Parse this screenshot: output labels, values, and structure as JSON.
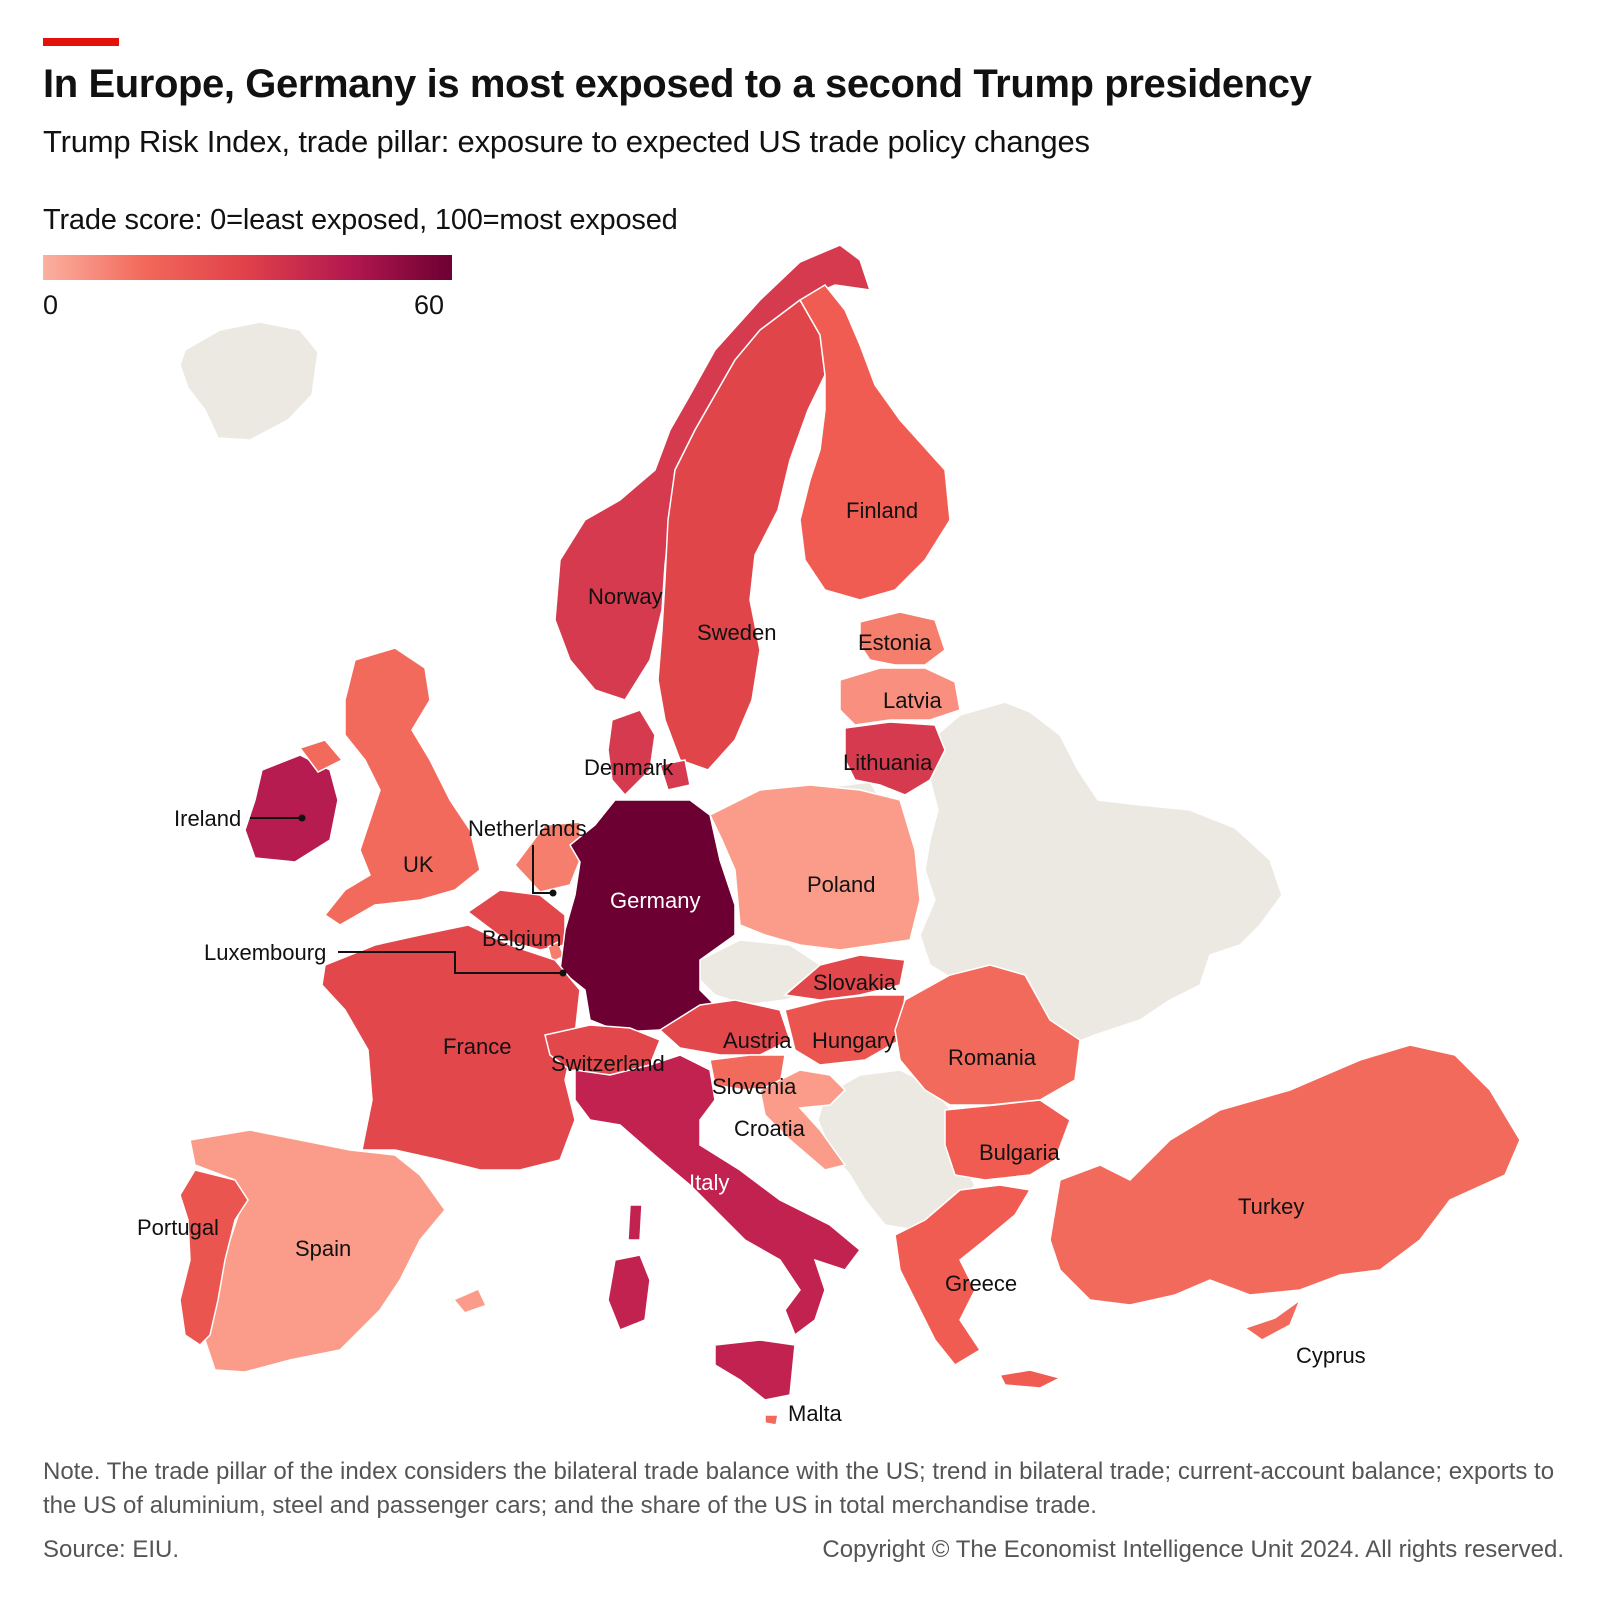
{
  "header": {
    "title": "In Europe, Germany is most exposed to a second Trump presidency",
    "subtitle": "Trump Risk Index, trade pillar: exposure to expected US trade policy changes",
    "accent_color": "#e3120b"
  },
  "legend": {
    "title": "Trade score: 0=least exposed, 100=most exposed",
    "min_label": "0",
    "max_label": "60",
    "min": 0,
    "max": 60,
    "colors": [
      "#fbb0a0",
      "#f2685a",
      "#e0404a",
      "#b3184f",
      "#6d0033"
    ]
  },
  "colors": {
    "no_data": "#ece9e2",
    "border": "#ffffff",
    "leader_line": "#111111"
  },
  "countries": [
    {
      "id": "norway",
      "name": "Norway",
      "color": "#d63a4e"
    },
    {
      "id": "sweden",
      "name": "Sweden",
      "color": "#e0454a"
    },
    {
      "id": "finland",
      "name": "Finland",
      "color": "#f05c51"
    },
    {
      "id": "estonia",
      "name": "Estonia",
      "color": "#f57e6c"
    },
    {
      "id": "latvia",
      "name": "Latvia",
      "color": "#f98f7e"
    },
    {
      "id": "lithuania",
      "name": "Lithuania",
      "color": "#d63a4e"
    },
    {
      "id": "denmark",
      "name": "Denmark",
      "color": "#d63a4e"
    },
    {
      "id": "ireland",
      "name": "Ireland",
      "color": "#b71c50"
    },
    {
      "id": "uk",
      "name": "UK",
      "color": "#f26a5c"
    },
    {
      "id": "netherlands",
      "name": "Netherlands",
      "color": "#f57e6c"
    },
    {
      "id": "belgium",
      "name": "Belgium",
      "color": "#e2474c"
    },
    {
      "id": "luxembourg",
      "name": "Luxembourg",
      "color": "#f57e6c"
    },
    {
      "id": "germany",
      "name": "Germany",
      "color": "#6d0033"
    },
    {
      "id": "poland",
      "name": "Poland",
      "color": "#fb9c8a"
    },
    {
      "id": "france",
      "name": "France",
      "color": "#e2474c"
    },
    {
      "id": "switzerland",
      "name": "Switzerland",
      "color": "#e2474c"
    },
    {
      "id": "austria",
      "name": "Austria",
      "color": "#e2474c"
    },
    {
      "id": "slovakia",
      "name": "Slovakia",
      "color": "#e2474c"
    },
    {
      "id": "hungary",
      "name": "Hungary",
      "color": "#ea5550"
    },
    {
      "id": "slovenia",
      "name": "Slovenia",
      "color": "#f26a5c"
    },
    {
      "id": "croatia",
      "name": "Croatia",
      "color": "#fb9c8a"
    },
    {
      "id": "romania",
      "name": "Romania",
      "color": "#f26a5c"
    },
    {
      "id": "bulgaria",
      "name": "Bulgaria",
      "color": "#f05c51"
    },
    {
      "id": "greece",
      "name": "Greece",
      "color": "#f05c51"
    },
    {
      "id": "turkey",
      "name": "Turkey",
      "color": "#f26a5c"
    },
    {
      "id": "cyprus",
      "name": "Cyprus",
      "color": "#f26a5c"
    },
    {
      "id": "italy",
      "name": "Italy",
      "color": "#c2224f"
    },
    {
      "id": "malta",
      "name": "Malta",
      "color": "#f26a5c"
    },
    {
      "id": "spain",
      "name": "Spain",
      "color": "#fb9c8a"
    },
    {
      "id": "portugal",
      "name": "Portugal",
      "color": "#ea5550"
    }
  ],
  "labels": {
    "norway": "Norway",
    "sweden": "Sweden",
    "finland": "Finland",
    "estonia": "Estonia",
    "latvia": "Latvia",
    "lithuania": "Lithuania",
    "denmark": "Denmark",
    "ireland": "Ireland",
    "uk": "UK",
    "netherlands": "Netherlands",
    "belgium": "Belgium",
    "luxembourg": "Luxembourg",
    "germany": "Germany",
    "poland": "Poland",
    "france": "France",
    "switzerland": "Switzerland",
    "austria": "Austria",
    "slovakia": "Slovakia",
    "hungary": "Hungary",
    "slovenia": "Slovenia",
    "croatia": "Croatia",
    "romania": "Romania",
    "bulgaria": "Bulgaria",
    "greece": "Greece",
    "turkey": "Turkey",
    "cyprus": "Cyprus",
    "italy": "Italy",
    "malta": "Malta",
    "spain": "Spain",
    "portugal": "Portugal"
  },
  "footer": {
    "note": "Note. The trade pillar of the index considers the bilateral trade balance with the US; trend in bilateral trade; current-account balance; exports to the US of aluminium, steel and passenger cars; and the share of the US in total merchandise trade.",
    "source": "Source: EIU.",
    "copyright": "Copyright © The Economist Intelligence Unit 2024. All rights reserved."
  }
}
